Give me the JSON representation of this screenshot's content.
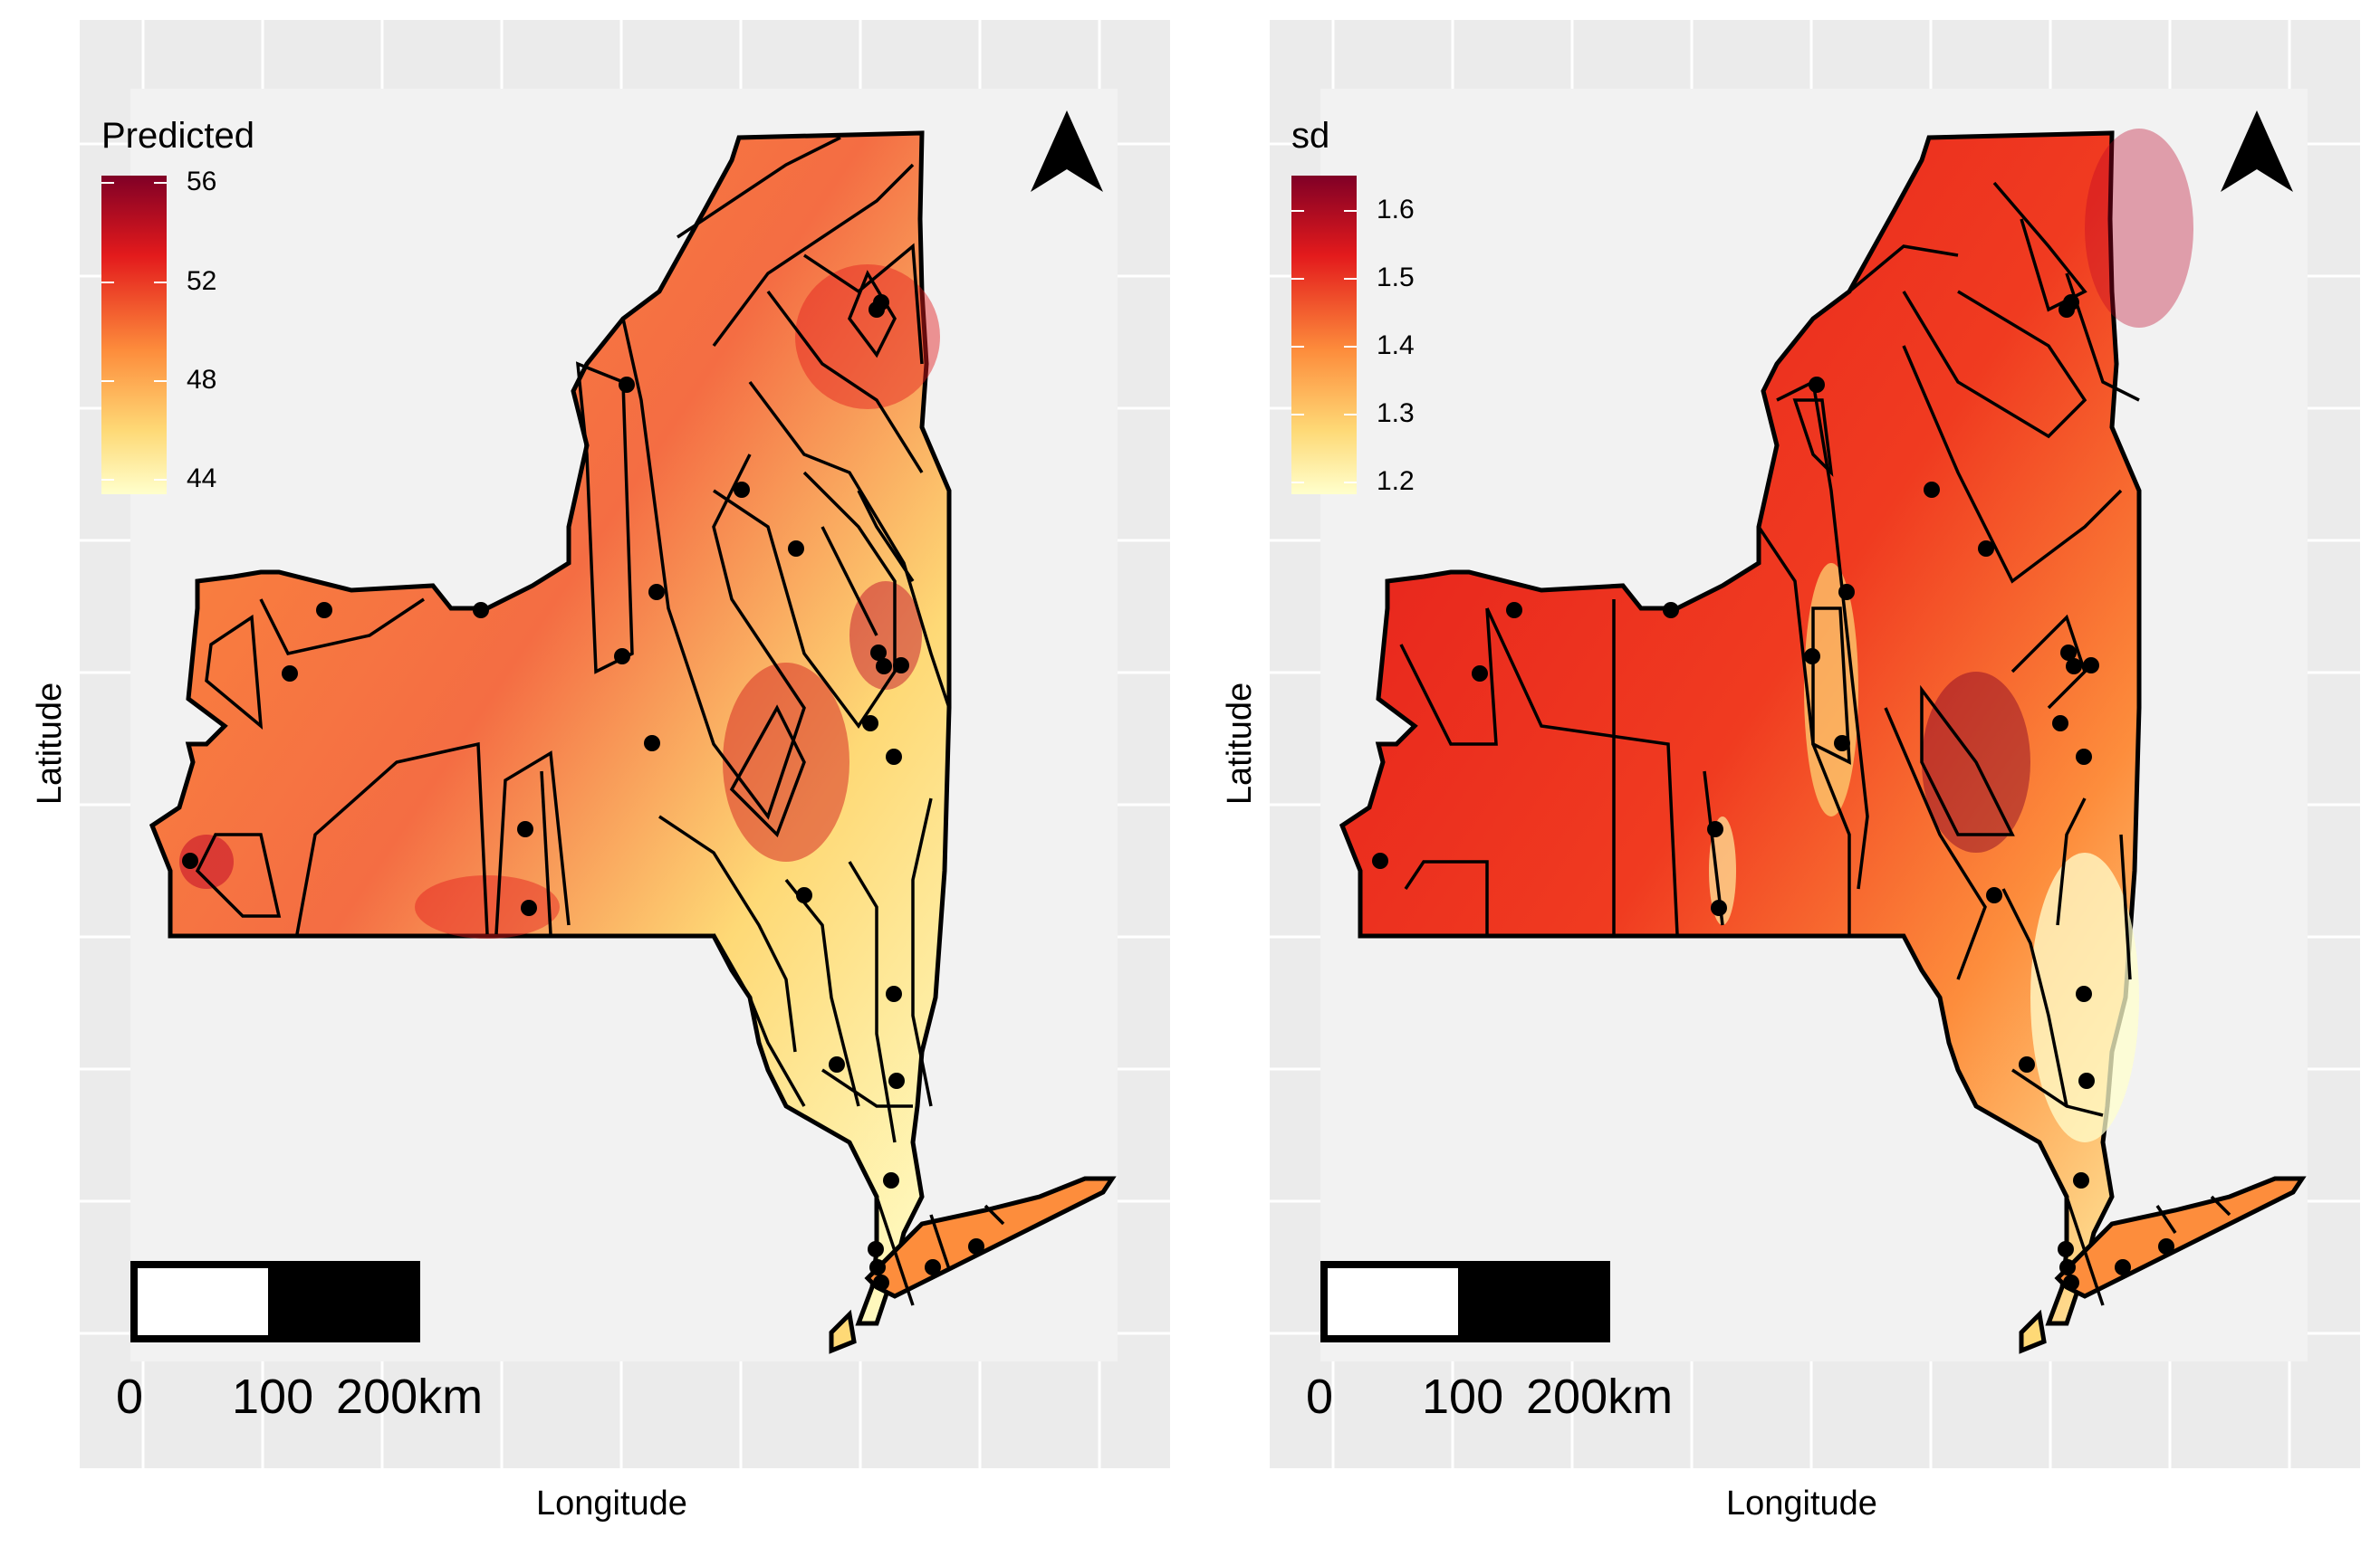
{
  "panels": [
    {
      "id": "predicted",
      "legend_title": "Predicted",
      "legend_ticks": [
        "56",
        "52",
        "48",
        "44"
      ],
      "legend_colors": [
        "#800026",
        "#e31a1c",
        "#fd8d3c",
        "#fed976",
        "#ffffcc"
      ],
      "x_axis_label": "Longitude",
      "y_axis_label": "Latitude",
      "scale_bar_labels": [
        "0",
        "100",
        "200km"
      ],
      "north_arrow": "north-arrow-icon"
    },
    {
      "id": "sd",
      "legend_title": "sd",
      "legend_ticks": [
        "1.6",
        "1.5",
        "1.4",
        "1.3",
        "1.2"
      ],
      "legend_colors": [
        "#800026",
        "#e31a1c",
        "#fd8d3c",
        "#fed976",
        "#ffffcc"
      ],
      "x_axis_label": "Longitude",
      "y_axis_label": "Latitude",
      "scale_bar_labels": [
        "0",
        "100",
        "200km"
      ],
      "north_arrow": "north-arrow-icon"
    }
  ],
  "colors": {
    "panel_background": "#ebebeb",
    "grid_line": "#ffffff",
    "map_background": "#f2f2f2",
    "outline": "#000000"
  }
}
